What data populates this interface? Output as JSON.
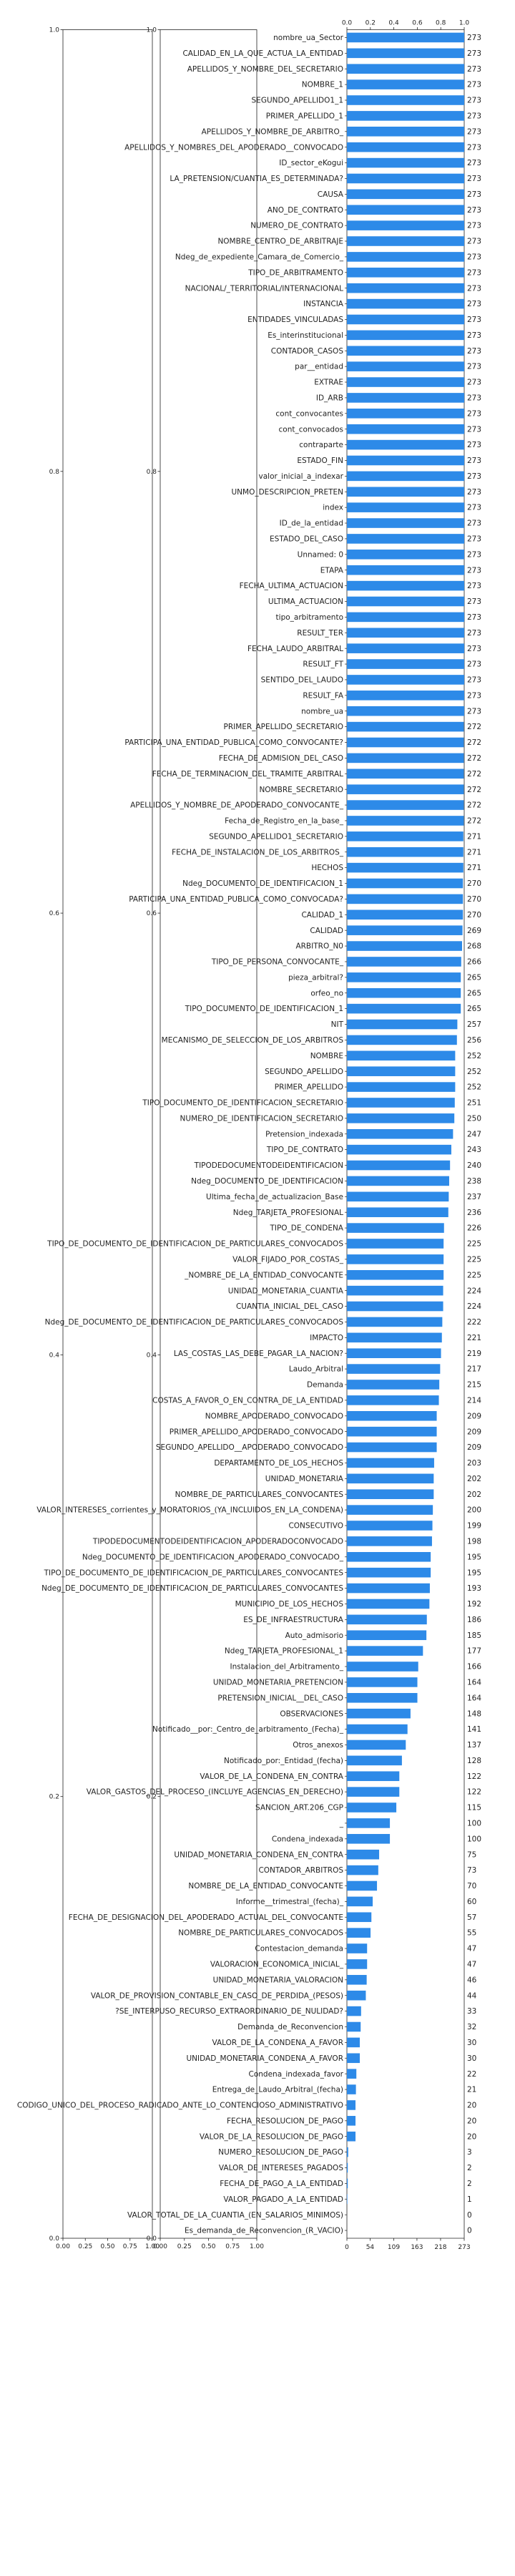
{
  "chart_data": [
    {
      "type": "bar",
      "orientation": "horizontal",
      "title": "",
      "xlabel": "",
      "ylabel": "",
      "bar_color": "#2d8ae8",
      "xlim": [
        0,
        273
      ],
      "x_ticks": [
        0,
        54,
        109,
        163,
        218,
        273
      ],
      "top_ticks": [
        "0.0",
        "0.2",
        "0.4",
        "0.6",
        "0.8",
        "1.0"
      ],
      "grid": false,
      "categories": [
        "nombre_ua_Sector",
        "CALIDAD_EN_LA_QUE_ACTUA_LA_ENTIDAD",
        "APELLIDOS_Y_NOMBRE_DEL_SECRETARIO",
        "NOMBRE_1",
        "SEGUNDO_APELLIDO1_1",
        "PRIMER_APELLIDO_1",
        "APELLIDOS_Y_NOMBRE_DE_ARBITRO_",
        "APELLIDOS_Y_NOMBRES_DEL_APODERADO__CONVOCADO",
        "ID_sector_eKogui",
        "LA_PRETENSION/CUANTIA_ES_DETERMINADA?",
        "CAUSA",
        "ANO_DE_CONTRATO",
        "NUMERO_DE_CONTRATO",
        "NOMBRE_CENTRO_DE_ARBITRAJE",
        "Ndeg_de_expediente_Camara_de_Comercio_",
        "TIPO_DE_ARBITRAMENTO",
        "NACIONAL/_TERRITORIAL/INTERNACIONAL",
        "INSTANCIA",
        "ENTIDADES_VINCULADAS",
        "Es_interinstitucional",
        "CONTADOR_CASOS",
        "par__entidad",
        "EXTRAE",
        "ID_ARB",
        "cont_convocantes",
        "cont_convocados",
        "contraparte",
        "ESTADO_FIN",
        "valor_inicial_a_indexar",
        "UNMO_DESCRIPCION_PRETEN",
        "index",
        "ID_de_la_entidad",
        "ESTADO_DEL_CASO",
        "Unnamed: 0",
        "ETAPA",
        "FECHA_ULTIMA_ACTUACION",
        "ULTIMA_ACTUACION",
        "tipo_arbitramento",
        "RESULT_TER",
        "FECHA_LAUDO_ARBITRAL",
        "RESULT_FT",
        "SENTIDO_DEL_LAUDO",
        "RESULT_FA",
        "nombre_ua",
        "PRIMER_APELLIDO_SECRETARIO",
        "PARTICIPA_UNA_ENTIDAD_PUBLICA_COMO_CONVOCANTE?",
        "FECHA_DE_ADMISION_DEL_CASO",
        "FECHA_DE_TERMINACION_DEL_TRAMITE_ARBITRAL",
        "NOMBRE_SECRETARIO",
        "APELLIDOS_Y_NOMBRE_DE_APODERADO_CONVOCANTE_",
        "Fecha_de_Registro_en_la_base_",
        "SEGUNDO_APELLIDO1_SECRETARIO",
        "FECHA_DE_INSTALACION_DE_LOS_ARBITROS_",
        "HECHOS",
        "Ndeg_DOCUMENTO_DE_IDENTIFICACION_1",
        "PARTICIPA_UNA_ENTIDAD_PUBLICA_COMO_CONVOCADA?",
        "CALIDAD_1",
        "CALIDAD",
        "ARBITRO_N0",
        "TIPO_DE_PERSONA_CONVOCANTE_",
        "pieza_arbitral?",
        "orfeo_no",
        "TIPO_DOCUMENTO_DE_IDENTIFICACION_1",
        "NIT",
        "MECANISMO_DE_SELECCION_DE_LOS_ARBITROS",
        "NOMBRE",
        "SEGUNDO_APELLIDO",
        "PRIMER_APELLIDO",
        "TIPO_DOCUMENTO_DE_IDENTIFICACION_SECRETARIO",
        "NUMERO_DE_IDENTIFICACION_SECRETARIO",
        "Pretension_indexada",
        "TIPO_DE_CONTRATO",
        "TIPODEDOCUMENTODEIDENTIFICACION",
        "Ndeg_DOCUMENTO_DE_IDENTIFICACION",
        "Ultima_fecha_de_actualizacion_Base",
        "Ndeg_TARJETA_PROFESIONAL",
        "TIPO_DE_CONDENA",
        "TIPO_DE_DOCUMENTO_DE_IDENTIFICACION_DE_PARTICULARES_CONVOCADOS",
        "VALOR_FIJADO_POR_COSTAS_",
        "_NOMBRE_DE_LA_ENTIDAD_CONVOCANTE",
        "UNIDAD_MONETARIA_CUANTIA",
        "CUANTIA_INICIAL_DEL_CASO",
        "Ndeg_DE_DOCUMENTO_DE_IDENTIFICACION_DE_PARTICULARES_CONVOCADOS",
        "IMPACTO",
        "LAS_COSTAS_LAS_DEBE_PAGAR_LA_NACION?",
        "Laudo_Arbitral",
        "Demanda",
        "COSTAS_A_FAVOR_O_EN_CONTRA_DE_LA_ENTIDAD",
        "NOMBRE_APODERADO_CONVOCADO",
        "PRIMER_APELLIDO_APODERADO_CONVOCADO",
        "SEGUNDO_APELLIDO__APODERADO_CONVOCADO",
        "DEPARTAMENTO_DE_LOS_HECHOS",
        "UNIDAD_MONETARIA",
        "NOMBRE_DE_PARTICULARES_CONVOCANTES",
        "VALOR_INTERESES_corrientes_y_MORATORIOS_(YA_INCLUIDOS_EN_LA_CONDENA)",
        "CONSECUTIVO",
        "TIPODEDOCUMENTODEIDENTIFICACION_APODERADOCONVOCADO",
        "Ndeg_DOCUMENTO_DE_IDENTIFICACION_APODERADO_CONVOCADO_",
        "TIPO_DE_DOCUMENTO_DE_IDENTIFICACION_DE_PARTICULARES_CONVOCANTES",
        "Ndeg_DE_DOCUMENTO_DE_IDENTIFICACION_DE_PARTICULARES_CONVOCANTES",
        "MUNICIPIO_DE_LOS_HECHOS",
        "ES_DE_INFRAESTRUCTURA",
        "Auto_admisorio",
        "Ndeg_TARJETA_PROFESIONAL_1",
        "Instalacion_del_Arbitramento_",
        "UNIDAD_MONETARIA_PRETENCION",
        "PRETENSION_INICIAL__DEL_CASO",
        "OBSERVACIONES",
        "Notificado__por:_Centro_de_arbitramento_(Fecha)_",
        "Otros_anexos",
        "Notificado_por:_Entidad_(fecha)",
        "VALOR_DE_LA_CONDENA_EN_CONTRA",
        "VALOR_GASTOS_DEL_PROCESO_(INCLUYE_AGENCIAS_EN_DERECHO)",
        "SANCION_ART.206_CGP",
        "_",
        "Condena_indexada",
        "UNIDAD_MONETARIA_CONDENA_EN_CONTRA",
        "CONTADOR_ARBITROS",
        "NOMBRE_DE_LA_ENTIDAD_CONVOCANTE",
        "Informe__trimestral_(fecha)_",
        "FECHA_DE_DESIGNACION_DEL_APODERADO_ACTUAL_DEL_CONVOCANTE",
        "NOMBRE_DE_PARTICULARES_CONVOCADOS",
        "Contestacion_demanda",
        "VALORACION_ECONOMICA_INICIAL_",
        "UNIDAD_MONETARIA_VALORACION",
        "VALOR_DE_PROVISION_CONTABLE_EN_CASO_DE_PERDIDA_(PESOS)",
        "?SE_INTERPUSO_RECURSO_EXTRAORDINARIO_DE_NULIDAD?",
        "Demanda_de_Reconvencion",
        "VALOR_DE_LA_CONDENA_A_FAVOR",
        "UNIDAD_MONETARIA_CONDENA_A_FAVOR",
        "Condena_indexada_favor",
        "Entrega_de_Laudo_Arbitral_(fecha)",
        "CODIGO_UNICO_DEL_PROCESO_RADICADO_ANTE_LO_CONTENCIOSO_ADMINISTRATIVO",
        "FECHA_RESOLUCION_DE_PAGO",
        "VALOR_DE_LA_RESOLUCION_DE_PAGO",
        "NUMERO_RESOLUCION_DE_PAGO",
        "VALOR_DE_INTERESES_PAGADOS",
        "FECHA_DE_PAGO_A_LA_ENTIDAD",
        "VALOR_PAGADO_A_LA_ENTIDAD",
        "VALOR_TOTAL_DE_LA_CUANTIA_(EN_SALARIOS_MINIMOS)",
        "Es_demanda_de_Reconvencion_(R_VACIO)"
      ],
      "values": [
        273,
        273,
        273,
        273,
        273,
        273,
        273,
        273,
        273,
        273,
        273,
        273,
        273,
        273,
        273,
        273,
        273,
        273,
        273,
        273,
        273,
        273,
        273,
        273,
        273,
        273,
        273,
        273,
        273,
        273,
        273,
        273,
        273,
        273,
        273,
        273,
        273,
        273,
        273,
        273,
        273,
        273,
        273,
        273,
        272,
        272,
        272,
        272,
        272,
        272,
        272,
        271,
        271,
        271,
        270,
        270,
        270,
        269,
        268,
        266,
        265,
        265,
        265,
        257,
        256,
        252,
        252,
        252,
        251,
        250,
        247,
        243,
        240,
        238,
        237,
        236,
        226,
        225,
        225,
        225,
        224,
        224,
        222,
        221,
        219,
        217,
        215,
        214,
        209,
        209,
        209,
        203,
        202,
        202,
        200,
        199,
        198,
        195,
        195,
        193,
        192,
        186,
        185,
        177,
        166,
        164,
        164,
        148,
        141,
        137,
        128,
        122,
        122,
        115,
        100,
        100,
        75,
        73,
        70,
        60,
        57,
        55,
        47,
        47,
        46,
        44,
        33,
        32,
        30,
        30,
        22,
        21,
        20,
        20,
        20,
        3,
        2,
        2,
        1,
        0,
        0
      ]
    },
    {
      "type": "line",
      "title": "",
      "ylim": [
        0.0,
        1.0
      ],
      "y_ticks": [
        "0.0",
        "0.2",
        "0.4",
        "0.6",
        "0.8",
        "1.0"
      ],
      "x_ticks": [
        "0.00",
        "0.25",
        "0.50",
        "0.75",
        "1.00"
      ],
      "series": []
    },
    {
      "type": "line",
      "title": "",
      "ylim": [
        0.0,
        1.0
      ],
      "y_ticks": [
        "0.0",
        "0.2",
        "0.4",
        "0.6",
        "0.8",
        "1.0"
      ],
      "x_ticks": [
        "0.00",
        "0.25",
        "0.50",
        "0.75",
        "1.00"
      ],
      "series": []
    }
  ]
}
